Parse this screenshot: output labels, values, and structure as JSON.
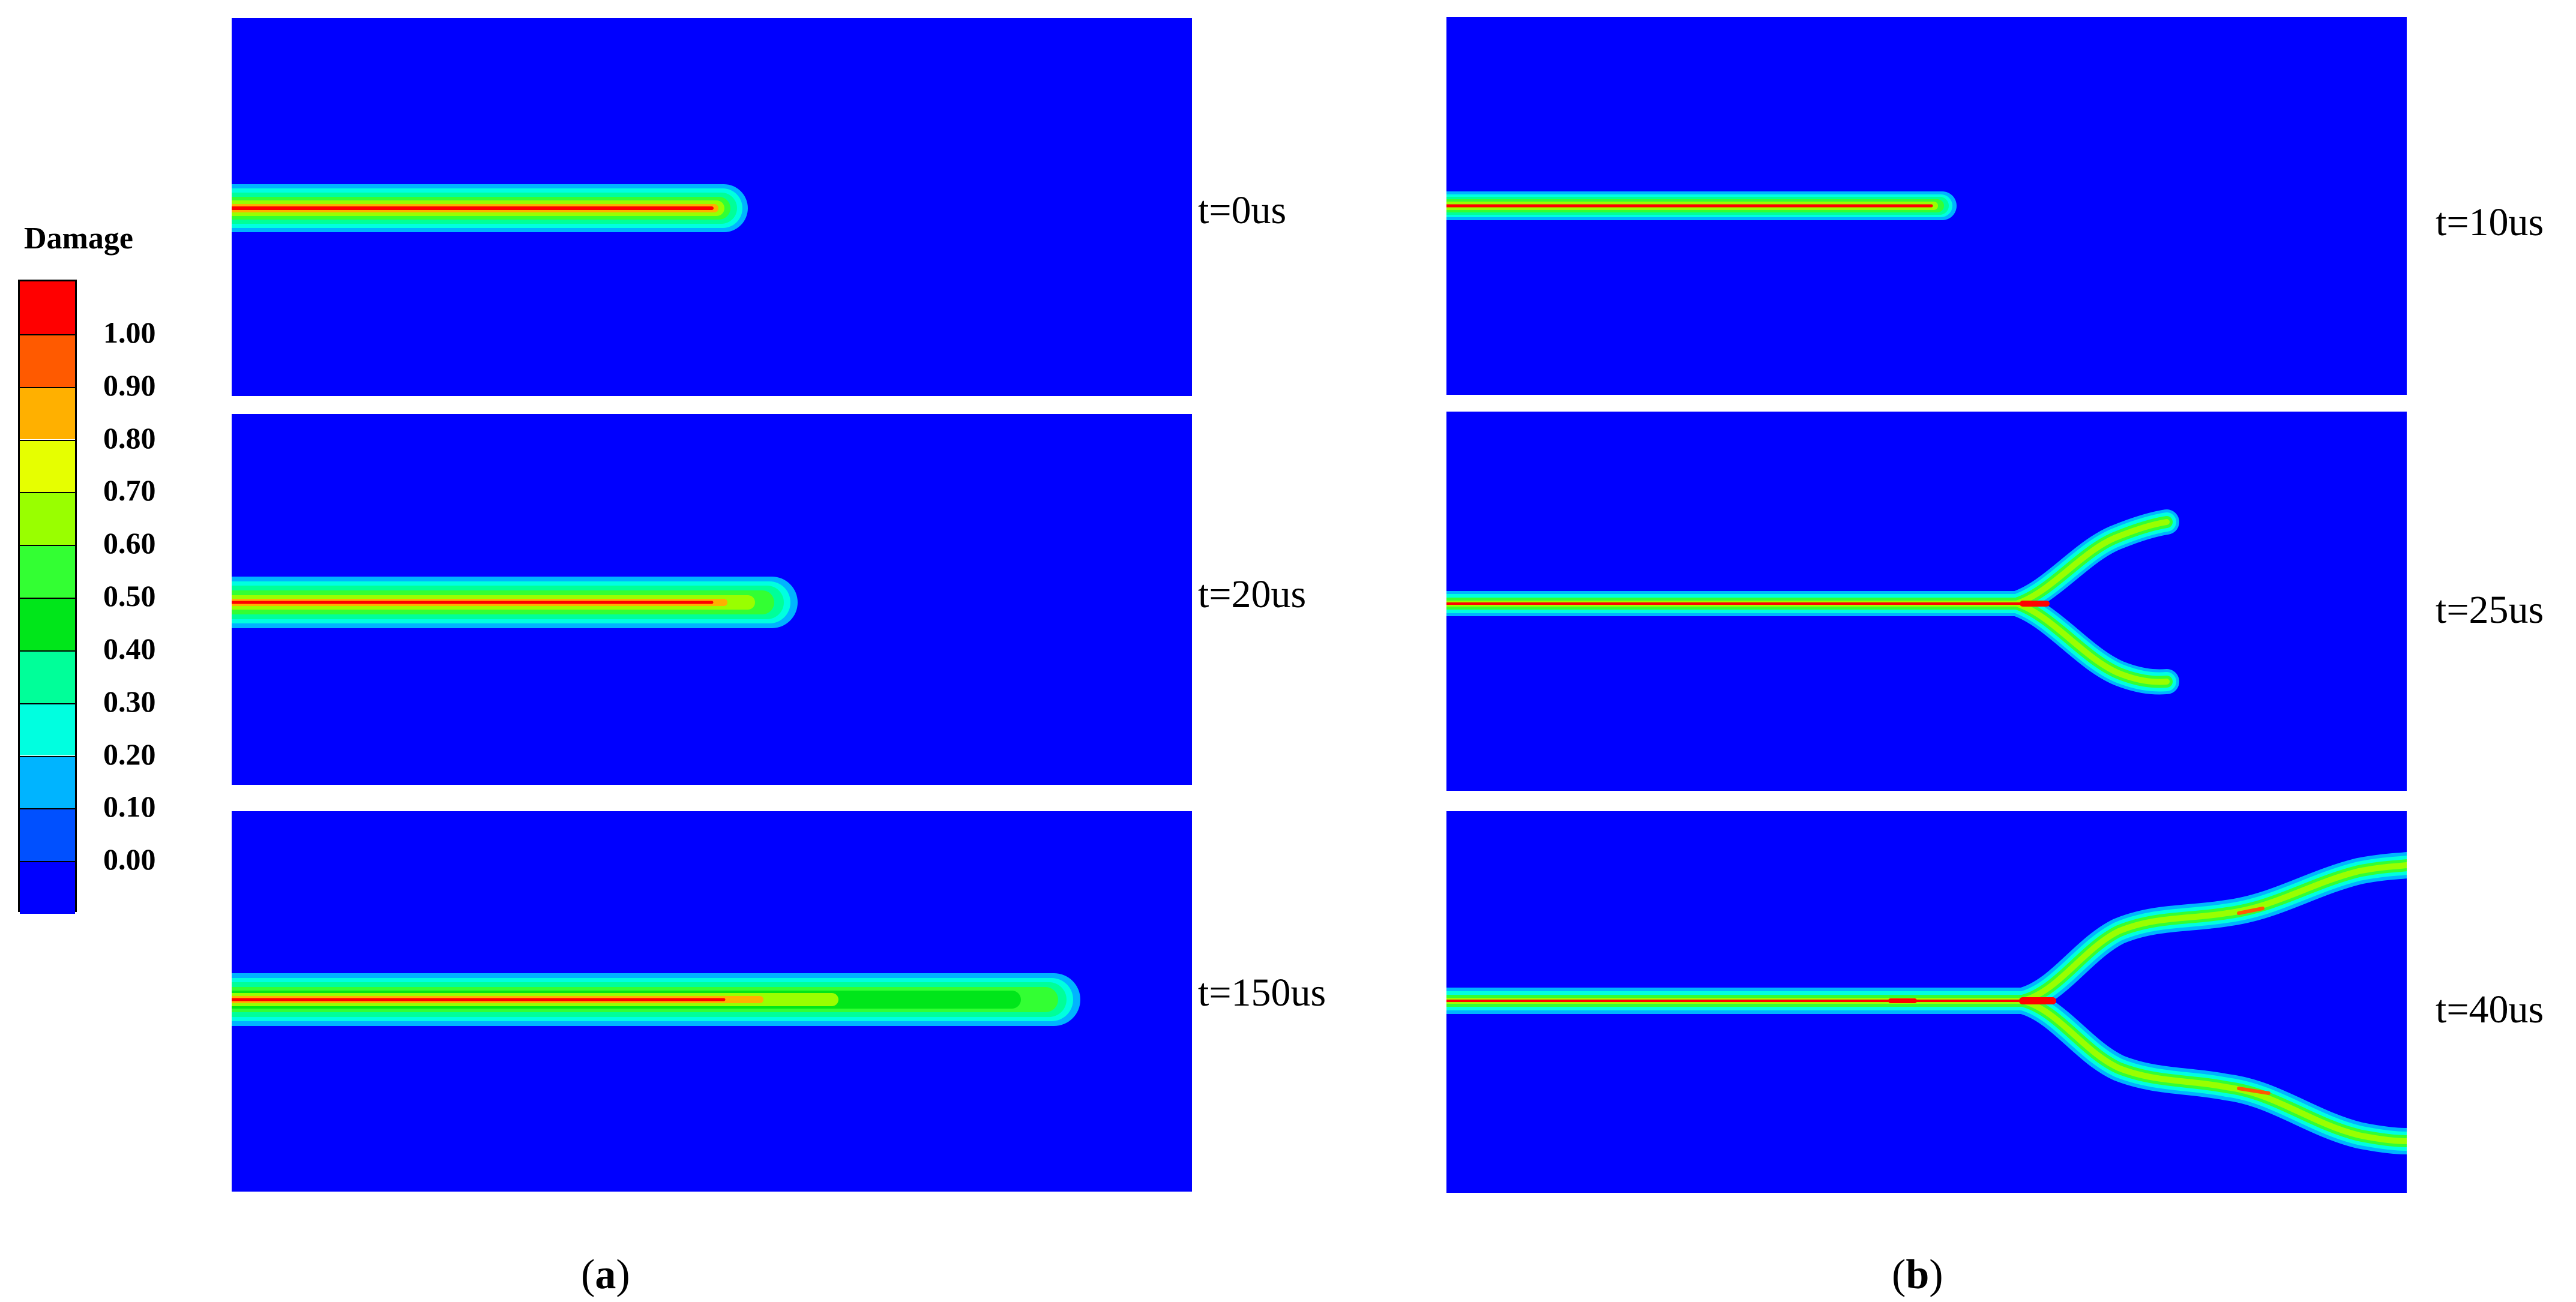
{
  "legend": {
    "title": "Damage",
    "ticks": [
      "1.00",
      "0.90",
      "0.80",
      "0.70",
      "0.60",
      "0.50",
      "0.40",
      "0.30",
      "0.20",
      "0.10",
      "0.00"
    ],
    "colors": [
      "#ff0000",
      "#ff5a00",
      "#ffb000",
      "#e6ff00",
      "#99ff00",
      "#33ff33",
      "#00e61a",
      "#00ff99",
      "#00ffe0",
      "#00b4ff",
      "#0050ff",
      "#0000ff"
    ]
  },
  "background_color": "#0000ff",
  "panels": [
    {
      "id": "a1",
      "label": "t=0us"
    },
    {
      "id": "a2",
      "label": "t=20us"
    },
    {
      "id": "a3",
      "label": "t=150us"
    },
    {
      "id": "b1",
      "label": "t=10us"
    },
    {
      "id": "b2",
      "label": "t=25us"
    },
    {
      "id": "b3",
      "label": "t=40us"
    }
  ],
  "captions": {
    "a": {
      "open": "(",
      "letter": "a",
      "close": ")"
    },
    "b": {
      "open": "(",
      "letter": "b",
      "close": ")"
    }
  }
}
